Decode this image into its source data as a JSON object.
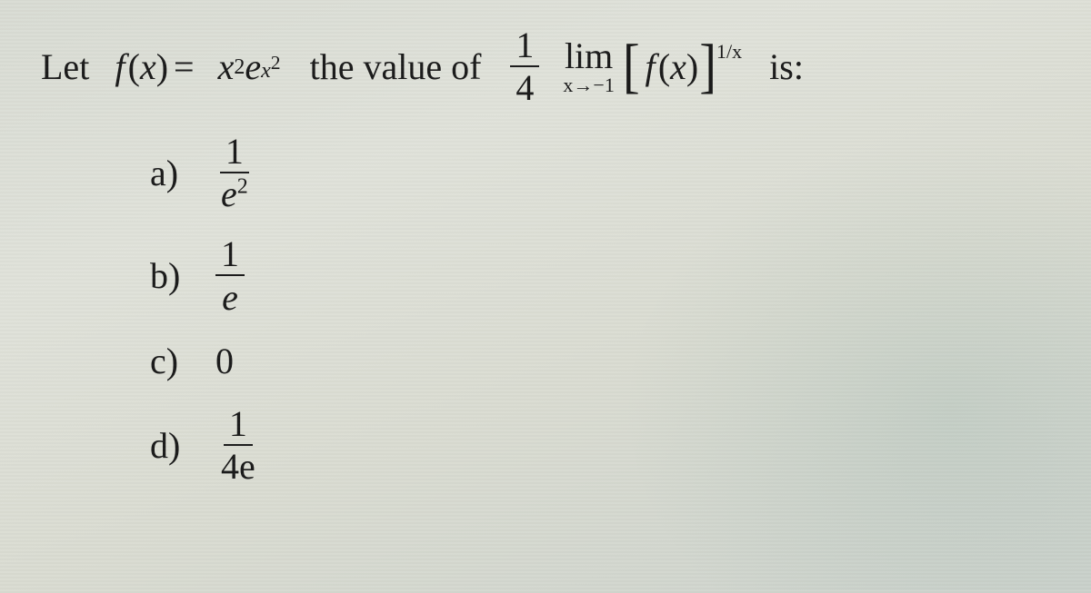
{
  "text_color": "#1a1a1a",
  "background_gradient": [
    "#d9dcd4",
    "#e0e2da",
    "#dadcd2",
    "#cdd3cd"
  ],
  "font_family": "Times New Roman",
  "question": {
    "fontsize_pt": 30,
    "let": "Let",
    "fx_eq_lhs": "f (x) =",
    "fx_eq_rhs_base": "x",
    "fx_eq_rhs_base_sup": "2",
    "fx_eq_rhs_e": "e",
    "fx_eq_rhs_e_sup_base": "x",
    "fx_eq_rhs_e_sup_sup": "2",
    "the_value_of": "the value of",
    "coef_num": "1",
    "coef_den": "4",
    "lim_word": "lim",
    "lim_sub": "x→−1",
    "br_inner": "f (x)",
    "outer_exp": "1/x",
    "is": "is:"
  },
  "options": [
    {
      "label": "a)",
      "type": "fraction",
      "num": "1",
      "den_base": "e",
      "den_sup": "2"
    },
    {
      "label": "b)",
      "type": "fraction",
      "num": "1",
      "den_base": "e",
      "den_sup": ""
    },
    {
      "label": "c)",
      "type": "plain",
      "value": "0"
    },
    {
      "label": "d)",
      "type": "fraction",
      "num": "1",
      "den_base": "4e",
      "den_sup": ""
    }
  ]
}
